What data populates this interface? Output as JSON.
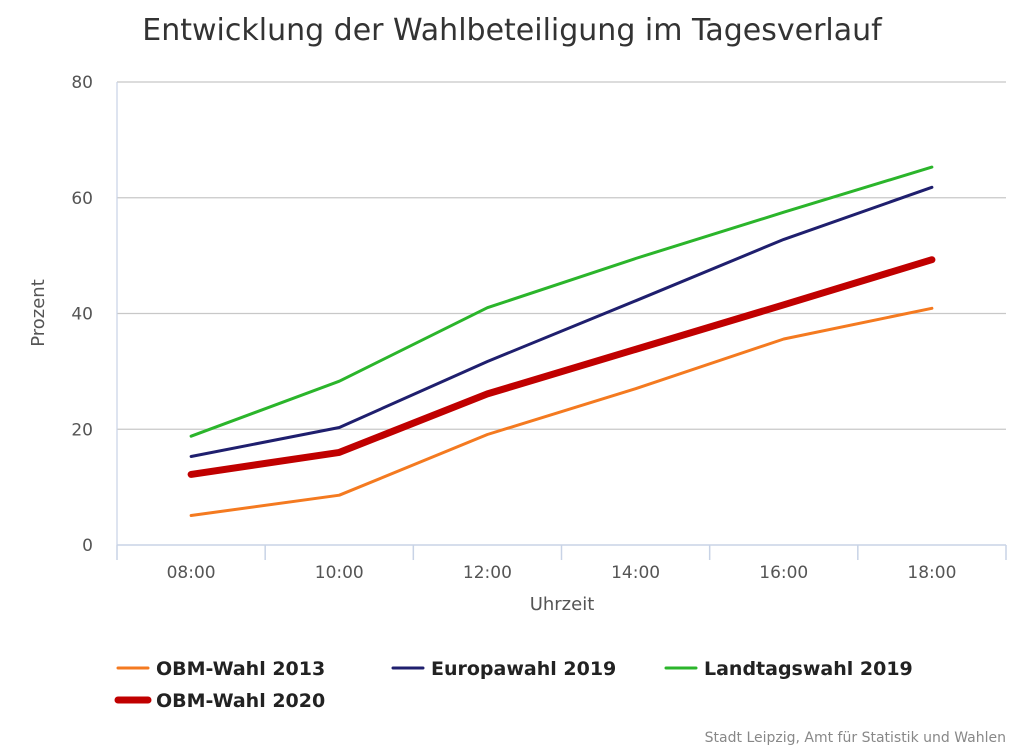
{
  "chart_data": {
    "type": "line",
    "title": "Entwicklung der Wahlbeteiligung im Tagesverlauf",
    "xlabel": "Uhrzeit",
    "ylabel": "Prozent",
    "categories": [
      "08:00",
      "10:00",
      "12:00",
      "14:00",
      "16:00",
      "18:00"
    ],
    "ylim": [
      0,
      80
    ],
    "yticks": [
      0,
      20,
      40,
      60,
      80
    ],
    "grid": true,
    "legend_position": "bottom",
    "series": [
      {
        "name": "OBM-Wahl 2013",
        "color": "#f47a20",
        "emphasis": false,
        "values": [
          5.1,
          8.6,
          19.1,
          27.0,
          35.6,
          40.9
        ]
      },
      {
        "name": "Europawahl 2019",
        "color": "#1f1f6e",
        "emphasis": false,
        "values": [
          15.3,
          20.3,
          31.7,
          42.2,
          52.8,
          61.8
        ]
      },
      {
        "name": "Landtagswahl 2019",
        "color": "#2bb52b",
        "emphasis": false,
        "values": [
          18.8,
          28.3,
          41.0,
          49.5,
          57.5,
          65.3
        ]
      },
      {
        "name": "OBM-Wahl 2020",
        "color": "#c00000",
        "emphasis": true,
        "values": [
          12.2,
          16.0,
          26.1,
          33.8,
          41.5,
          49.3
        ]
      }
    ],
    "source": "Stadt Leipzig, Amt für Statistik und Wahlen"
  }
}
